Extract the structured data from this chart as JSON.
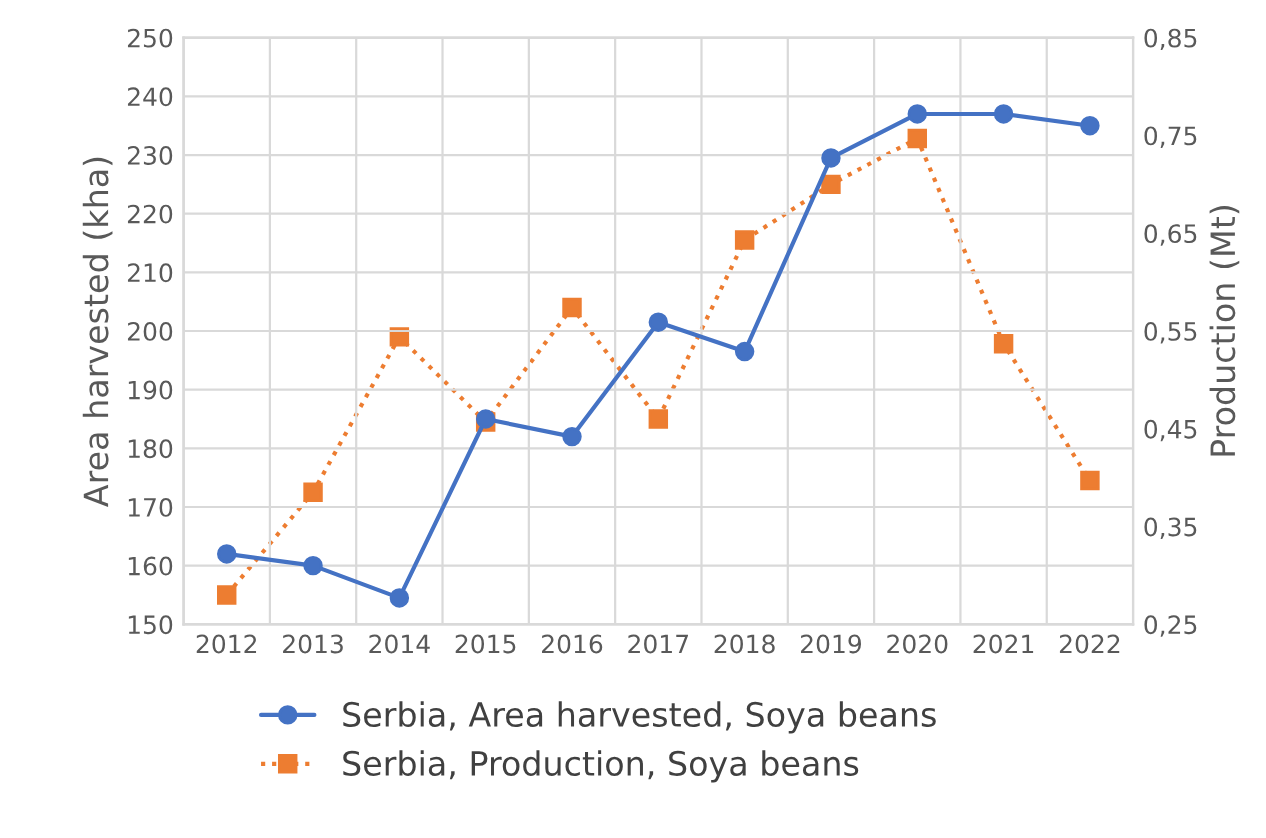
{
  "chart_data": {
    "type": "line",
    "ylabel": "Area harvested (kha)",
    "y2label": "Production (Mt)",
    "categories": [
      "2012",
      "2013",
      "2014",
      "2015",
      "2016",
      "2017",
      "2018",
      "2019",
      "2020",
      "2021",
      "2022"
    ],
    "series": [
      {
        "name": "Serbia, Area harvested, Soya beans",
        "color": "#4472c4",
        "values": [
          162,
          160,
          154.5,
          185,
          182,
          201.5,
          196.5,
          229.5,
          237,
          237,
          235
        ],
        "marker": "circle",
        "line_style": "solid"
      },
      {
        "name": "Serbia, Production, Soya beans",
        "color": "#ed7d31",
        "values": [
          0.28,
          0.385,
          0.544,
          0.457,
          0.574,
          0.46,
          0.643,
          0.7,
          0.747,
          0.537,
          0.397
        ],
        "axis": "y2",
        "marker": "square",
        "line_style": "dotted"
      }
    ],
    "ylim": [
      150,
      250
    ],
    "yticks": [
      150,
      160,
      170,
      180,
      190,
      200,
      210,
      220,
      230,
      240,
      250
    ],
    "y2lim": [
      0.25,
      0.85
    ],
    "y2ticks": [
      {
        "value": 0.25,
        "label": "0,25"
      },
      {
        "value": 0.35,
        "label": "0,35"
      },
      {
        "value": 0.45,
        "label": "0,45"
      },
      {
        "value": 0.55,
        "label": "0,55"
      },
      {
        "value": 0.65,
        "label": "0,65"
      },
      {
        "value": 0.75,
        "label": "0,75"
      },
      {
        "value": 0.85,
        "label": "0,85"
      }
    ],
    "grid": true,
    "legend": "bottom"
  }
}
